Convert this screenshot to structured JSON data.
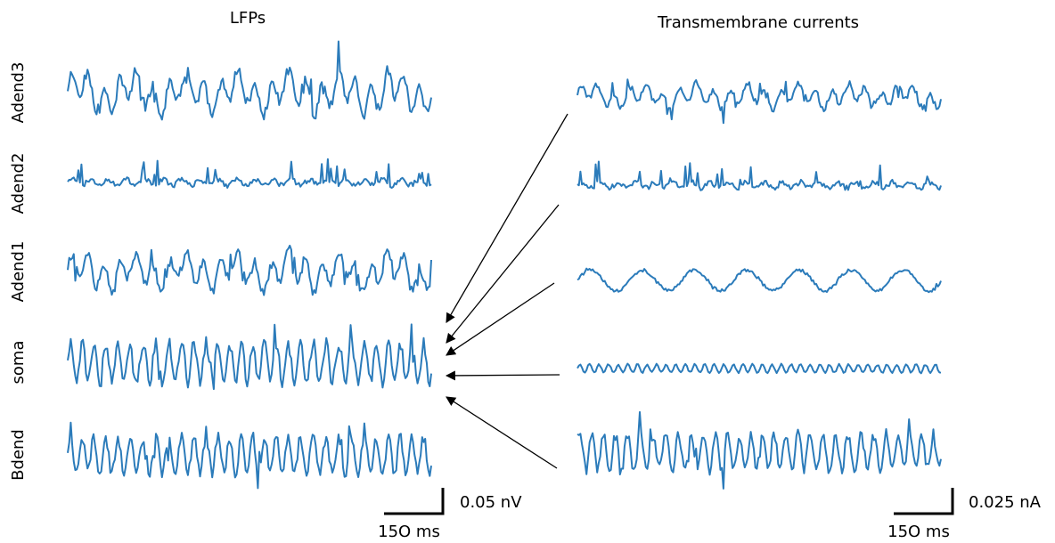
{
  "chart_data": [
    {
      "type": "line",
      "title": "LFPs",
      "channels": [
        {
          "name": "Adend3",
          "pattern": "mixed",
          "amplitude": 1.0
        },
        {
          "name": "Adend2",
          "pattern": "spiky-low",
          "amplitude": 0.45
        },
        {
          "name": "Adend1",
          "pattern": "mixed",
          "amplitude": 0.9
        },
        {
          "name": "soma",
          "pattern": "fast",
          "amplitude": 1.1
        },
        {
          "name": "Bdend",
          "pattern": "fast",
          "amplitude": 1.0
        }
      ],
      "scale_bar": {
        "vertical": "0.05 nV",
        "horizontal": "15O ms"
      }
    },
    {
      "type": "line",
      "title": "Transmembrane currents",
      "channels": [
        {
          "name": "Adend3",
          "pattern": "mixed",
          "amplitude": 0.55
        },
        {
          "name": "Adend2",
          "pattern": "spiky-low",
          "amplitude": 0.45
        },
        {
          "name": "Adend1",
          "pattern": "slow-wave",
          "amplitude": 0.4
        },
        {
          "name": "soma",
          "pattern": "fast-small",
          "amplitude": 0.18
        },
        {
          "name": "Bdend",
          "pattern": "fast",
          "amplitude": 1.0
        }
      ],
      "scale_bar": {
        "vertical": "0.025 nA",
        "horizontal": "15O ms"
      }
    }
  ],
  "colors": {
    "trace": "#2b7bba",
    "scale_bar": "#000000",
    "arrow": "#000000"
  },
  "annotations": {
    "arrows": "each transmembrane current trace points to the soma LFP"
  }
}
